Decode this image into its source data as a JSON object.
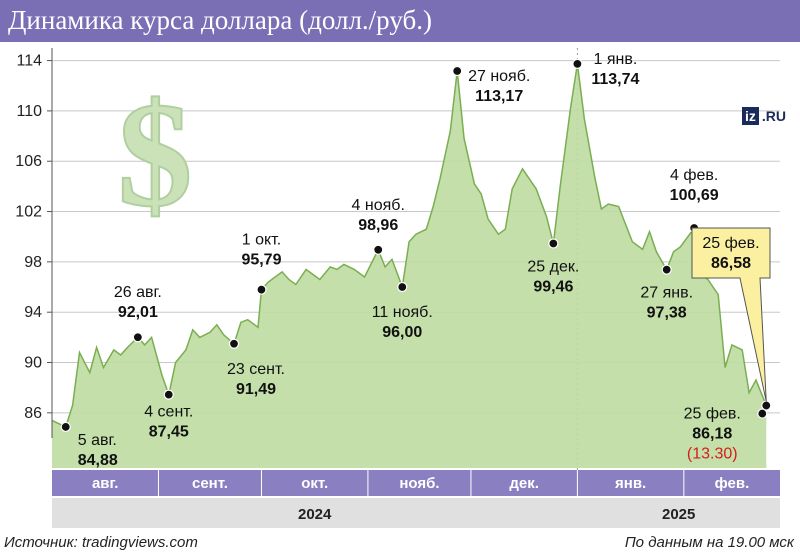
{
  "title": "Динамика курса доллара (долл./руб.)",
  "source": "Источник: tradingviews.com",
  "note": "По данным на 19.00 мск",
  "logo": {
    "box": "iz",
    "suffix": ".RU"
  },
  "colors": {
    "title_bg": "#7a6fb5",
    "area_fill": "#bedca0",
    "line": "#7aae52",
    "month_bar": "#8a7fc0",
    "year_bar": "#e0e0e0",
    "callout": "#fbf0a0",
    "highlight": "#d21e1e"
  },
  "chart_data": {
    "type": "area",
    "ylim": [
      84,
      115
    ],
    "yticks": [
      86,
      90,
      94,
      98,
      102,
      106,
      110,
      114
    ],
    "months": [
      "авг.",
      "сент.",
      "окт.",
      "нояб.",
      "дек.",
      "янв.",
      "фев."
    ],
    "years": [
      "2024",
      "2025"
    ],
    "series": [
      {
        "x": [
          "2024-08-01",
          "2024-08-05",
          "2024-08-07",
          "2024-08-09",
          "2024-08-12",
          "2024-08-14",
          "2024-08-16",
          "2024-08-19",
          "2024-08-21",
          "2024-08-23",
          "2024-08-26",
          "2024-08-28",
          "2024-08-30",
          "2024-09-02",
          "2024-09-04",
          "2024-09-06",
          "2024-09-09",
          "2024-09-11",
          "2024-09-13",
          "2024-09-16",
          "2024-09-18",
          "2024-09-20",
          "2024-09-23",
          "2024-09-25",
          "2024-09-27",
          "2024-09-30",
          "2024-10-01",
          "2024-10-03",
          "2024-10-07",
          "2024-10-09",
          "2024-10-11",
          "2024-10-14",
          "2024-10-16",
          "2024-10-18",
          "2024-10-21",
          "2024-10-23",
          "2024-10-25",
          "2024-10-28",
          "2024-10-31",
          "2024-11-04",
          "2024-11-06",
          "2024-11-08",
          "2024-11-11",
          "2024-11-13",
          "2024-11-15",
          "2024-11-18",
          "2024-11-20",
          "2024-11-22",
          "2024-11-25",
          "2024-11-27",
          "2024-11-29",
          "2024-12-02",
          "2024-12-04",
          "2024-12-06",
          "2024-12-09",
          "2024-12-11",
          "2024-12-13",
          "2024-12-16",
          "2024-12-18",
          "2024-12-20",
          "2024-12-23",
          "2024-12-25",
          "2024-12-27",
          "2024-12-30",
          "2025-01-01",
          "2025-01-03",
          "2025-01-06",
          "2025-01-08",
          "2025-01-10",
          "2025-01-13",
          "2025-01-15",
          "2025-01-17",
          "2025-01-20",
          "2025-01-22",
          "2025-01-24",
          "2025-01-27",
          "2025-01-29",
          "2025-01-31",
          "2025-02-04",
          "2025-02-06",
          "2025-02-08",
          "2025-02-11",
          "2025-02-13",
          "2025-02-15",
          "2025-02-18",
          "2025-02-20",
          "2025-02-22",
          "2025-02-25"
        ],
        "values": [
          85.4,
          84.88,
          86.6,
          90.8,
          89.2,
          91.2,
          89.6,
          91.0,
          90.6,
          91.2,
          92.01,
          91.4,
          92.0,
          89.0,
          87.45,
          90.0,
          91.0,
          92.6,
          92.0,
          92.4,
          93.0,
          92.2,
          91.49,
          93.2,
          93.4,
          92.8,
          95.79,
          96.4,
          97.2,
          96.6,
          96.2,
          97.4,
          97.0,
          96.6,
          97.6,
          97.4,
          97.8,
          97.4,
          96.8,
          98.96,
          97.6,
          98.2,
          96.0,
          99.6,
          100.2,
          100.6,
          102.4,
          104.6,
          108.4,
          113.17,
          107.8,
          104.2,
          103.4,
          101.4,
          100.2,
          100.6,
          103.8,
          105.4,
          104.6,
          103.8,
          101.6,
          99.46,
          104.0,
          110.2,
          113.74,
          109.4,
          104.8,
          102.2,
          102.6,
          102.4,
          101.0,
          99.6,
          99.0,
          100.4,
          98.8,
          97.38,
          98.8,
          99.2,
          100.69,
          97.0,
          96.6,
          95.4,
          89.6,
          91.4,
          91.0,
          87.6,
          88.6,
          86.58
        ]
      }
    ],
    "annotations": [
      {
        "date": "5 авг.",
        "value": "84,88"
      },
      {
        "date": "26 авг.",
        "value": "92,01"
      },
      {
        "date": "4 сент.",
        "value": "87,45"
      },
      {
        "date": "23 сент.",
        "value": "91,49"
      },
      {
        "date": "1 окт.",
        "value": "95,79"
      },
      {
        "date": "4 нояб.",
        "value": "98,96"
      },
      {
        "date": "11 нояб.",
        "value": "96,00"
      },
      {
        "date": "27 нояб.",
        "value": "113,17"
      },
      {
        "date": "25 дек.",
        "value": "99,46"
      },
      {
        "date": "1 янв.",
        "value": "113,74"
      },
      {
        "date": "27 янв.",
        "value": "97,38"
      },
      {
        "date": "4 фев.",
        "value": "100,69"
      },
      {
        "date": "25 фев.",
        "value": "86,58"
      },
      {
        "date": "25 фев.",
        "value": "86,18",
        "extra": "(13.30)"
      }
    ]
  }
}
